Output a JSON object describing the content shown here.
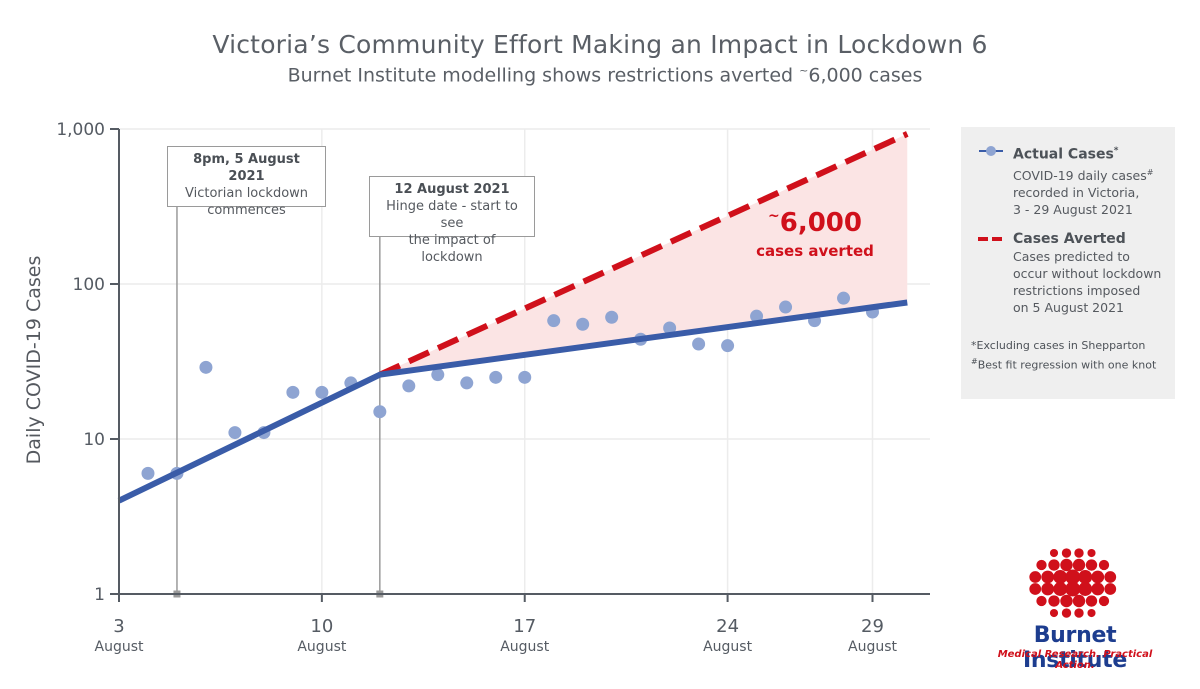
{
  "title": "Victoria’s Community Effort Making an Impact in Lockdown 6",
  "subtitle": "Burnet Institute modelling shows restrictions averted ",
  "subtitle_tilde": "~",
  "subtitle_tail": "6,000 cases",
  "colors": {
    "actual": "#8ea4d2",
    "fit": "#3a5ca8",
    "averted": "#d0101b",
    "shade": "#fbe4e4",
    "axis": "#555b63"
  },
  "annotations": [
    {
      "title": "8pm, 5 August 2021",
      "line1": "Victorian lockdown",
      "line2": "commences"
    },
    {
      "title": "12 August 2021",
      "line1": "Hinge date - start to see",
      "line2": "the impact of lockdown"
    }
  ],
  "averted_label": {
    "tilde": "~",
    "value": "6,000",
    "text": "cases averted"
  },
  "legend": {
    "actual": {
      "title": "Actual Cases",
      "title_mark": "*",
      "desc1": "COVID-19 daily cases",
      "desc1_mark": "#",
      "desc2": "recorded in Victoria,",
      "desc3": "3 - 29 August 2021"
    },
    "averted": {
      "title": "Cases Averted",
      "desc1": "Cases predicted to",
      "desc2": "occur without lockdown",
      "desc3": "restrictions imposed",
      "desc4": "on 5 August 2021"
    },
    "note1_mark": "*",
    "note1": "Excluding cases in Shepparton",
    "note2_mark": "#",
    "note2": "Best fit regression with one knot"
  },
  "logo": {
    "name": "Burnet Institute",
    "tagline": "Medical Research. Practical Action."
  },
  "chart_data": {
    "type": "scatter",
    "title": "Victoria’s Community Effort Making an Impact in Lockdown 6",
    "subtitle": "Burnet Institute modelling shows restrictions averted ~6,000 cases",
    "ylabel": "Daily COVID-19 Cases",
    "xlabel": "",
    "y_scale": "log",
    "ylim": [
      1,
      1000
    ],
    "xlim": [
      3,
      31
    ],
    "y_ticks": [
      1,
      10,
      100,
      1000
    ],
    "y_tick_labels": [
      "1",
      "10",
      "100",
      "1,000"
    ],
    "x_ticks": [
      3,
      10,
      17,
      24,
      29
    ],
    "x_tick_labels": [
      "3",
      "10",
      "17",
      "24",
      "29"
    ],
    "x_tick_sublabel": "August",
    "grid": true,
    "legend_position": "right",
    "vlines": [
      5,
      12
    ],
    "series": [
      {
        "name": "Actual Cases",
        "kind": "scatter",
        "x": [
          4,
          5,
          6,
          7,
          8,
          9,
          10,
          11,
          12,
          13,
          14,
          15,
          16,
          17,
          18,
          19,
          20,
          21,
          22,
          23,
          24,
          25,
          26,
          27,
          28,
          29
        ],
        "y": [
          6,
          6,
          29,
          11,
          11,
          20,
          20,
          23,
          15,
          22,
          26,
          23,
          25,
          25,
          58,
          55,
          61,
          44,
          52,
          41,
          40,
          62,
          71,
          58,
          81,
          66
        ]
      },
      {
        "name": "Best fit",
        "kind": "line",
        "x": [
          3,
          12,
          30.2
        ],
        "y": [
          4,
          26,
          76
        ]
      },
      {
        "name": "Cases Averted",
        "kind": "dashed-line",
        "x": [
          12,
          30.2
        ],
        "y": [
          26,
          930
        ]
      }
    ],
    "averted_total": "~6,000"
  }
}
